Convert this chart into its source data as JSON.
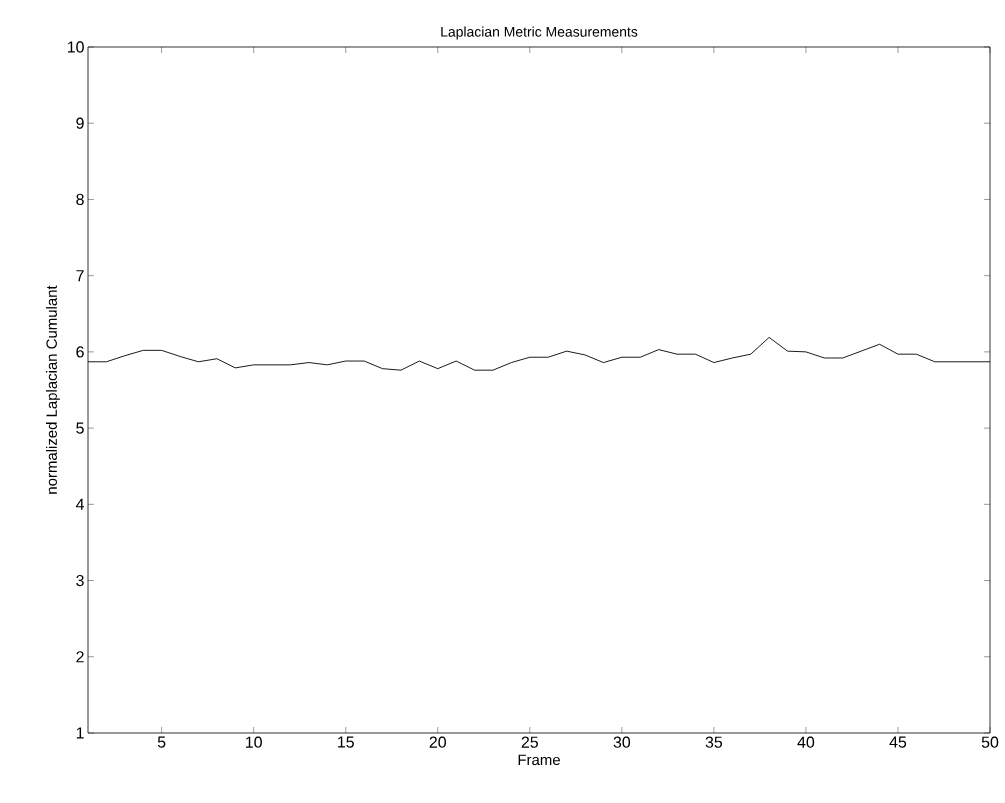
{
  "chart_data": {
    "type": "line",
    "title": "Laplacian Metric Measurements",
    "xlabel": "Frame",
    "ylabel": "normalized Laplacian Cumulant",
    "x": [
      1,
      2,
      3,
      4,
      5,
      6,
      7,
      8,
      9,
      10,
      11,
      12,
      13,
      14,
      15,
      16,
      17,
      18,
      19,
      20,
      21,
      22,
      23,
      24,
      25,
      26,
      27,
      28,
      29,
      30,
      31,
      32,
      33,
      34,
      35,
      36,
      37,
      38,
      39,
      40,
      41,
      42,
      43,
      44,
      45,
      46,
      47,
      48,
      49,
      50
    ],
    "series": [
      {
        "color": "#000000",
        "values": [
          5.87,
          5.87,
          5.95,
          6.02,
          6.02,
          5.94,
          5.87,
          5.91,
          5.79,
          5.83,
          5.83,
          5.83,
          5.86,
          5.83,
          5.88,
          5.88,
          5.78,
          5.76,
          5.88,
          5.78,
          5.88,
          5.76,
          5.76,
          5.86,
          5.93,
          5.93,
          6.01,
          5.96,
          5.86,
          5.93,
          5.93,
          6.03,
          5.97,
          5.97,
          5.86,
          5.92,
          5.97,
          6.19,
          6.01,
          6.0,
          5.92,
          5.92,
          6.01,
          6.1,
          5.97,
          5.97,
          5.87,
          5.87,
          5.87,
          5.87
        ]
      }
    ],
    "xlim": [
      1,
      50
    ],
    "ylim": [
      1,
      10
    ],
    "xticks": [
      5,
      10,
      15,
      20,
      25,
      30,
      35,
      40,
      45,
      50
    ],
    "yticks": [
      1,
      2,
      3,
      4,
      5,
      6,
      7,
      8,
      9,
      10
    ]
  }
}
